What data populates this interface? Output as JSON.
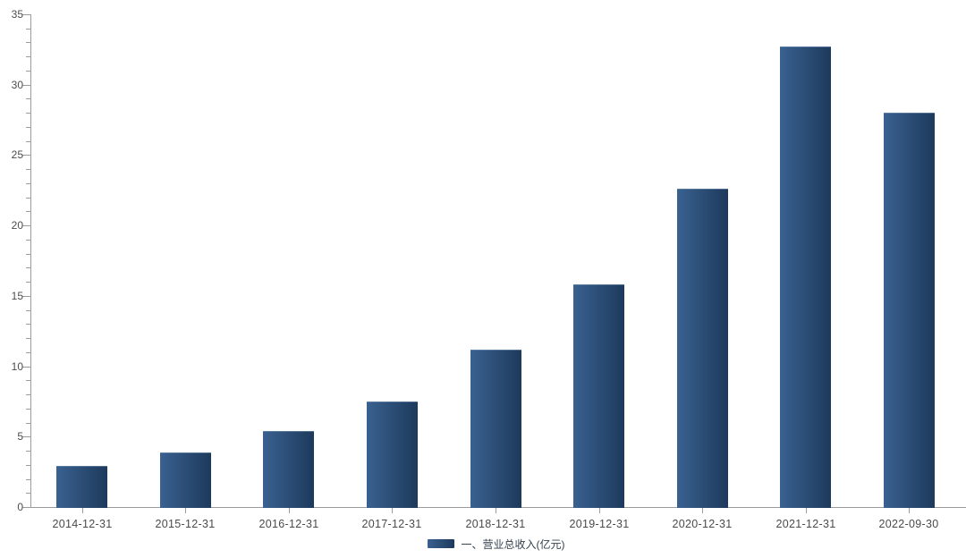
{
  "chart_data": {
    "type": "bar",
    "title": "",
    "xlabel": "",
    "ylabel": "",
    "categories": [
      "2014-12-31",
      "2015-12-31",
      "2016-12-31",
      "2017-12-31",
      "2018-12-31",
      "2019-12-31",
      "2020-12-31",
      "2021-12-31",
      "2022-09-30"
    ],
    "series": [
      {
        "name": "一、营业总收入(亿元)",
        "values": [
          2.9,
          3.9,
          5.4,
          7.5,
          11.2,
          15.8,
          22.6,
          32.7,
          28.0
        ]
      }
    ],
    "ylim": [
      0,
      35
    ],
    "y_major_tick_interval": 5,
    "y_minor_tick_interval": 1,
    "y_major_ticks": [
      0,
      5,
      10,
      15,
      20,
      25,
      30,
      35
    ],
    "grid": false,
    "legend_position": "bottom-center",
    "colors": {
      "bar_gradient_left": "#3a6190",
      "bar_gradient_right": "#1d3a5c",
      "axis_line": "#9b9b9b",
      "y_tick_label": "#4d4d4d",
      "x_tick_label": "#4a4a4a",
      "legend_text": "#33404d",
      "background": "#ffffff"
    }
  },
  "legend": {
    "items": [
      {
        "label": "一、营业总收入(亿元)"
      }
    ]
  }
}
